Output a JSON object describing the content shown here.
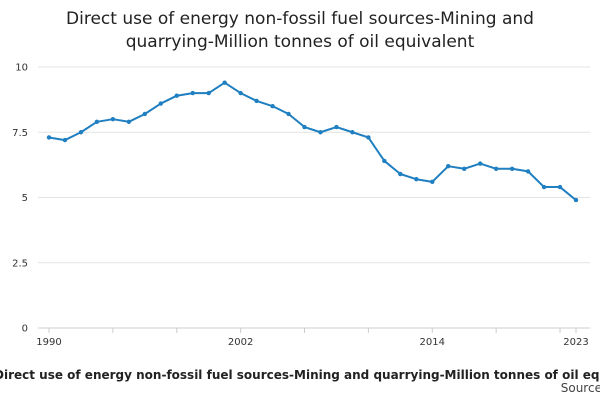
{
  "chart_data": {
    "type": "line",
    "title_lines": [
      "Direct use of energy non-fossil fuel sources-Mining and",
      "quarrying-Million tonnes of oil equivalent"
    ],
    "x": [
      1990,
      1991,
      1992,
      1993,
      1994,
      1995,
      1996,
      1997,
      1998,
      1999,
      2000,
      2001,
      2002,
      2003,
      2004,
      2005,
      2006,
      2007,
      2008,
      2009,
      2010,
      2011,
      2012,
      2013,
      2014,
      2015,
      2016,
      2017,
      2018,
      2019,
      2020,
      2021,
      2022,
      2023
    ],
    "series": [
      {
        "name": "Direct use of energy non-fossil fuel sources-Mining and quarrying-Million tonnes of oil equivalent",
        "color": "#1f7fc0",
        "values": [
          7.3,
          7.2,
          7.5,
          7.9,
          8.0,
          7.9,
          8.2,
          8.6,
          8.9,
          9.0,
          9.0,
          9.4,
          9.0,
          8.7,
          8.5,
          8.2,
          7.7,
          7.5,
          7.7,
          7.5,
          7.3,
          6.4,
          5.9,
          5.7,
          5.6,
          6.2,
          6.1,
          6.3,
          6.1,
          6.1,
          6.0,
          5.4,
          5.4,
          4.9
        ]
      }
    ],
    "x_tick_labels": [
      "1990",
      "2002",
      "2014",
      "2023"
    ],
    "x_tick_values": [
      1990,
      2002,
      2014,
      2023
    ],
    "y_tick_labels": [
      "0",
      "2.5",
      "5",
      "7.5",
      "10"
    ],
    "y_tick_values": [
      0,
      2.5,
      5,
      7.5,
      10
    ],
    "xlim": [
      1990,
      2023
    ],
    "ylim": [
      0,
      10
    ],
    "grid": "horizontal",
    "legend_position": "bottom",
    "source_label": "Source:"
  }
}
